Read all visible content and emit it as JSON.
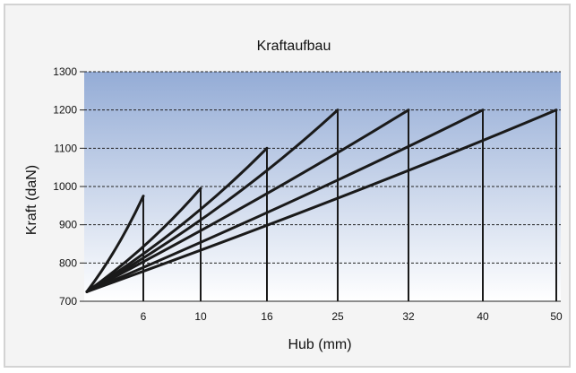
{
  "chart_data": {
    "type": "line",
    "title": "Kraftaufbau",
    "xlabel": "Hub (mm)",
    "ylabel": "Kraft (daN)",
    "ylim": [
      700,
      1300
    ],
    "y_ticks": [
      "700",
      "800",
      "900",
      "1000",
      "1100",
      "1200",
      "1300"
    ],
    "x_ticks": [
      "6",
      "10",
      "16",
      "25",
      "32",
      "40",
      "50"
    ],
    "grid": "horizontal dashed",
    "origin": {
      "x": 0,
      "y": 725
    },
    "series": [
      {
        "stroke_mm": 6,
        "points": [
          [
            0,
            725
          ],
          [
            6,
            975
          ]
        ]
      },
      {
        "stroke_mm": 10,
        "points": [
          [
            0,
            725
          ],
          [
            10,
            995
          ]
        ]
      },
      {
        "stroke_mm": 16,
        "points": [
          [
            0,
            725
          ],
          [
            16,
            1100
          ]
        ]
      },
      {
        "stroke_mm": 25,
        "points": [
          [
            0,
            725
          ],
          [
            25,
            1200
          ]
        ]
      },
      {
        "stroke_mm": 32,
        "points": [
          [
            0,
            725
          ],
          [
            32,
            1200
          ]
        ]
      },
      {
        "stroke_mm": 40,
        "points": [
          [
            0,
            725
          ],
          [
            40,
            1200
          ]
        ]
      },
      {
        "stroke_mm": 50,
        "points": [
          [
            0,
            725
          ],
          [
            50,
            1200
          ]
        ]
      }
    ],
    "colors": {
      "line": "#1a1a1a",
      "grid": "#222222",
      "bg_top": "#94acd6",
      "bg_bottom": "#ffffff",
      "frame_bg": "#f4f4f4"
    }
  }
}
